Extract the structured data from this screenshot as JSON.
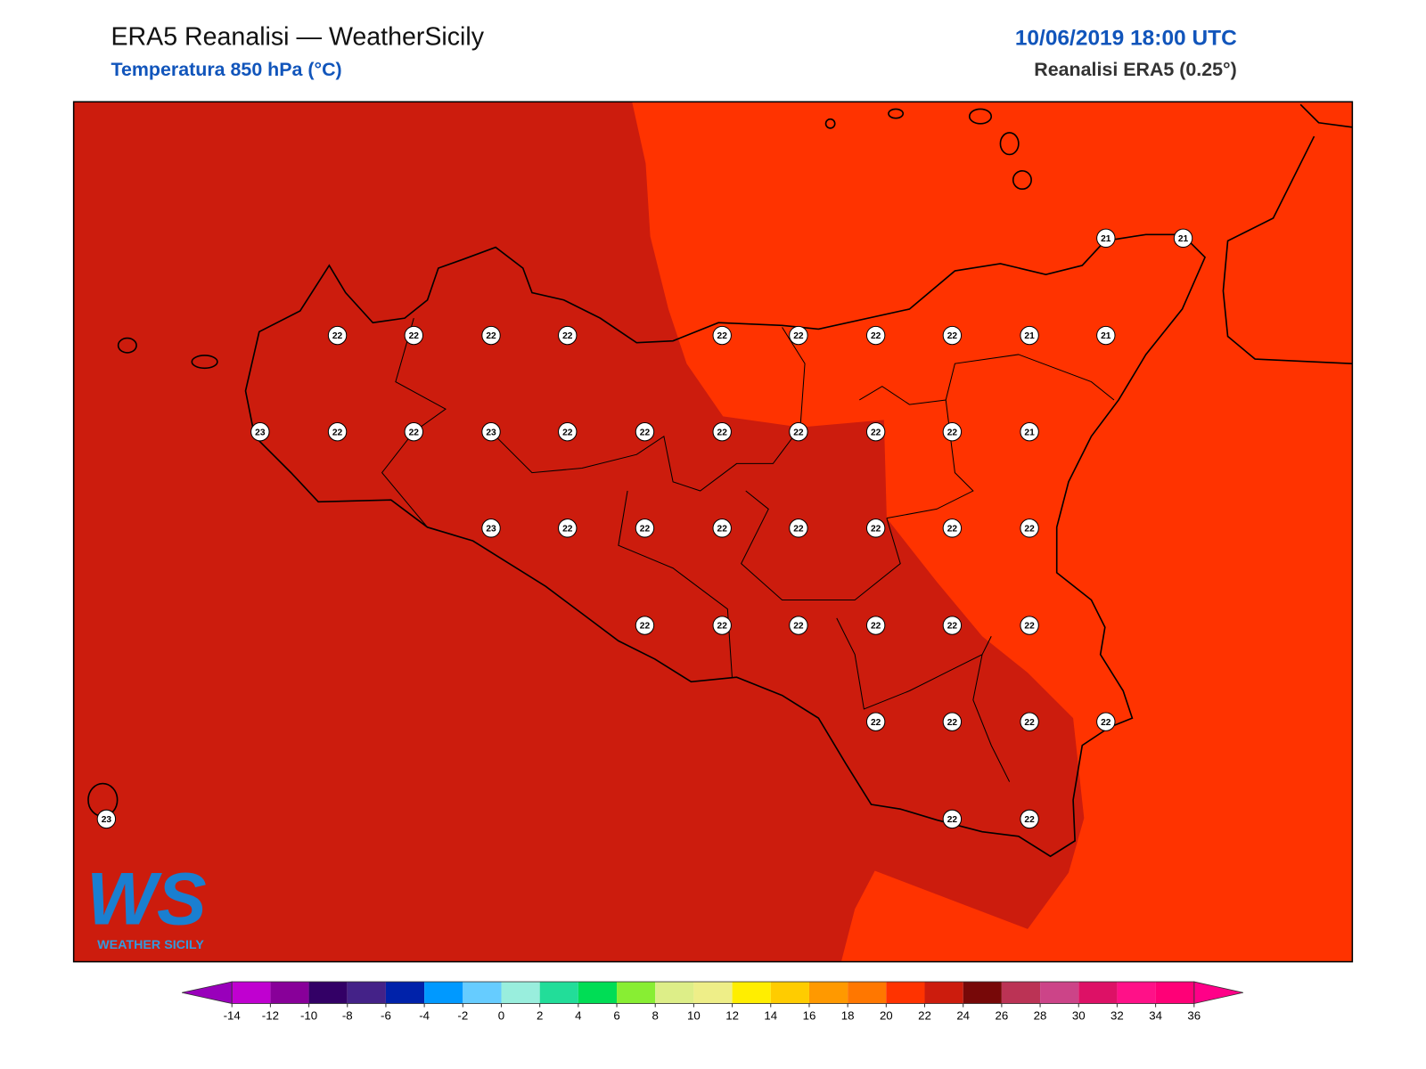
{
  "header": {
    "title": "ERA5 Reanalisi — WeatherSicily",
    "subtitle": "Temperatura 850 hPa (°C)",
    "datetime": "10/06/2019 18:00 UTC",
    "source": "Reanalisi ERA5 (0.25°)"
  },
  "station_values": [
    21,
    21,
    22,
    22,
    22,
    22,
    22,
    22,
    22,
    22,
    21,
    21,
    23,
    22,
    22,
    23,
    22,
    22,
    22,
    22,
    22,
    22,
    21,
    23,
    22,
    22,
    22,
    22,
    22,
    22,
    22,
    22,
    22,
    22,
    22,
    22,
    22,
    22,
    22,
    22,
    22,
    23,
    22,
    22
  ],
  "colorbar": {
    "ticks": [
      -14,
      -12,
      -10,
      -8,
      -6,
      -4,
      -2,
      0,
      2,
      4,
      6,
      8,
      10,
      12,
      14,
      16,
      18,
      20,
      22,
      24,
      26,
      28,
      30,
      32,
      34,
      36
    ],
    "colors": [
      "#c000d0",
      "#880099",
      "#330066",
      "#442288",
      "#0022aa",
      "#0099ff",
      "#66ccff",
      "#99eedd",
      "#22dd99",
      "#00dd55",
      "#88ee33",
      "#ddee88",
      "#eeee88",
      "#ffee00",
      "#ffcc00",
      "#ff9900",
      "#ff7700",
      "#ff3300",
      "#cc1c0d",
      "#770808",
      "#bb3355",
      "#cc4488",
      "#dd1166",
      "#ff1188",
      "#ff0077"
    ],
    "under": "#9900bb",
    "over": "#ff0088"
  },
  "logo": {
    "letters": "WS",
    "name": "WEATHER SICILY"
  }
}
